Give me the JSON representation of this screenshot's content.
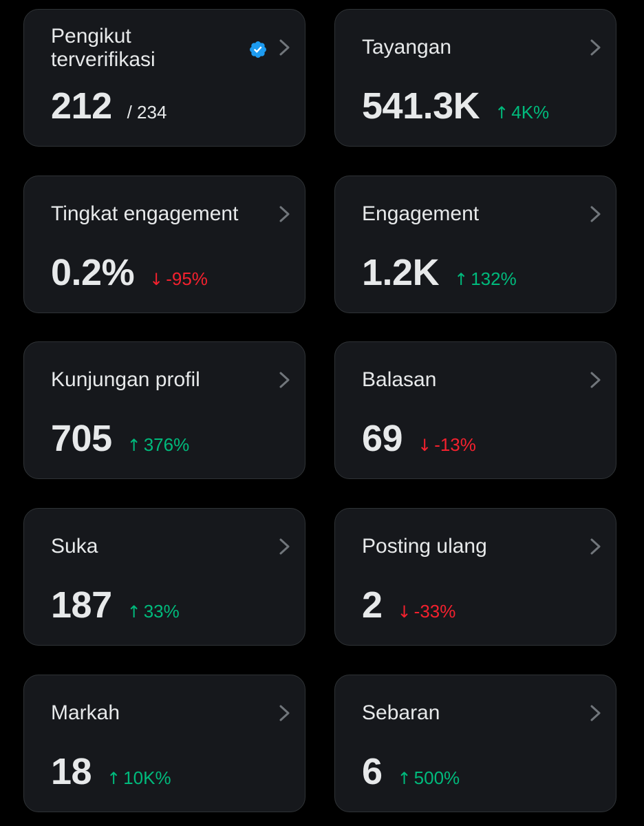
{
  "colors": {
    "background": "#000000",
    "card": "#16181c",
    "card_border": "#2f3336",
    "text": "#e7e9ea",
    "muted": "#71767b",
    "positive": "#00ba7c",
    "negative": "#f4212e",
    "verified": "#1d9bf0"
  },
  "cards": [
    {
      "label": "Pengikut terverifikasi",
      "value": "212",
      "total": "/ 234",
      "icon": "verified-badge-icon"
    },
    {
      "label": "Tayangan",
      "value": "541.3K",
      "change": "4K%",
      "direction": "up"
    },
    {
      "label": "Tingkat engagement",
      "value": "0.2%",
      "change": "-95%",
      "direction": "down"
    },
    {
      "label": "Engagement",
      "value": "1.2K",
      "change": "132%",
      "direction": "up"
    },
    {
      "label": "Kunjungan profil",
      "value": "705",
      "change": "376%",
      "direction": "up"
    },
    {
      "label": "Balasan",
      "value": "69",
      "change": "-13%",
      "direction": "down"
    },
    {
      "label": "Suka",
      "value": "187",
      "change": "33%",
      "direction": "up"
    },
    {
      "label": "Posting ulang",
      "value": "2",
      "change": "-33%",
      "direction": "down"
    },
    {
      "label": "Markah",
      "value": "18",
      "change": "10K%",
      "direction": "up"
    },
    {
      "label": "Sebaran",
      "value": "6",
      "change": "500%",
      "direction": "up"
    }
  ],
  "arrows": {
    "up": "↑",
    "down": "↓"
  }
}
